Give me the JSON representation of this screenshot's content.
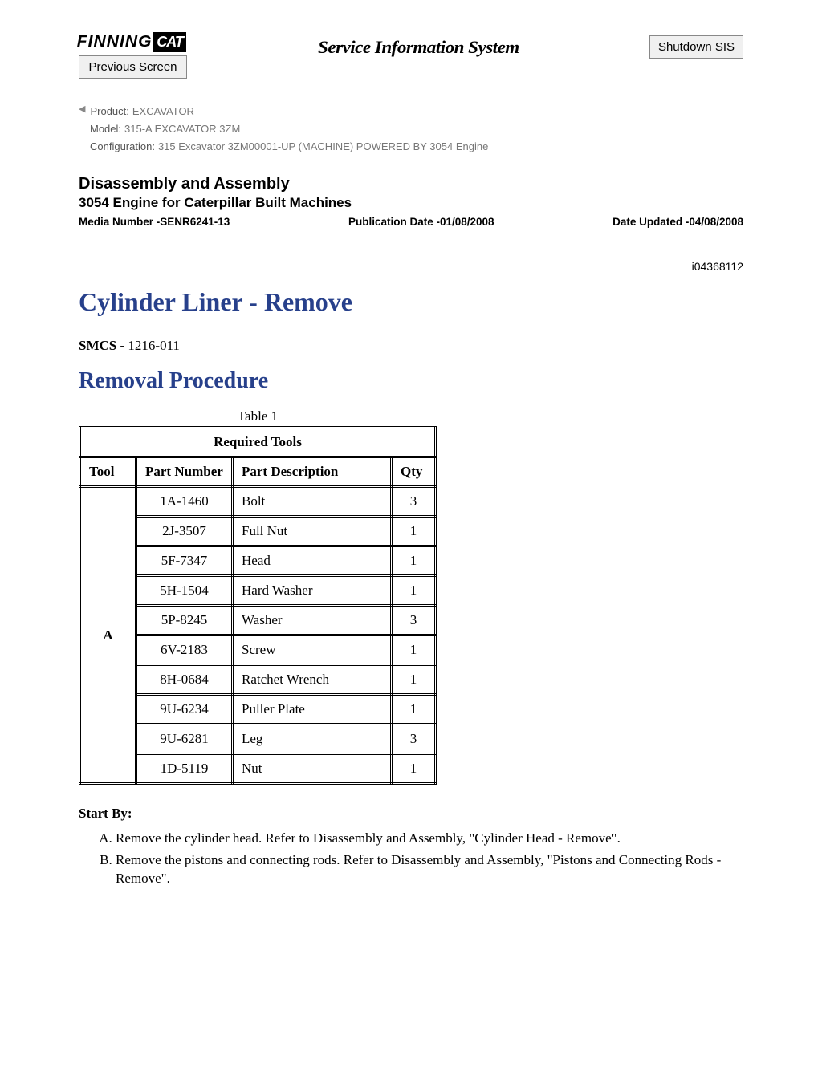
{
  "header": {
    "logo_text1": "FINNING",
    "logo_text2": "CAT",
    "system_title": "Service Information System",
    "prev_button": "Previous Screen",
    "shutdown_button": "Shutdown SIS"
  },
  "meta": {
    "product_label": "Product:",
    "product_value": "EXCAVATOR",
    "model_label": "Model:",
    "model_value": "315-A EXCAVATOR 3ZM",
    "config_label": "Configuration:",
    "config_value": "315 Excavator 3ZM00001-UP (MACHINE) POWERED BY 3054 Engine"
  },
  "doc": {
    "section": "Disassembly and Assembly",
    "subsection": "3054 Engine for Caterpillar Built Machines",
    "media": "Media Number -SENR6241-13",
    "pubdate": "Publication Date -01/08/2008",
    "updated": "Date Updated -04/08/2008",
    "docid": "i04368112",
    "h1": "Cylinder Liner - Remove",
    "smcs_label": "SMCS -",
    "smcs_value": "1216-011",
    "h2": "Removal Procedure"
  },
  "table": {
    "caption": "Table 1",
    "title": "Required Tools",
    "columns": [
      "Tool",
      "Part Number",
      "Part Description",
      "Qty"
    ],
    "tool_group": "A",
    "rows": [
      {
        "pn": "1A-1460",
        "desc": "Bolt",
        "qty": "3"
      },
      {
        "pn": "2J-3507",
        "desc": "Full Nut",
        "qty": "1"
      },
      {
        "pn": "5F-7347",
        "desc": "Head",
        "qty": "1"
      },
      {
        "pn": "5H-1504",
        "desc": "Hard Washer",
        "qty": "1"
      },
      {
        "pn": "5P-8245",
        "desc": "Washer",
        "qty": "3"
      },
      {
        "pn": "6V-2183",
        "desc": "Screw",
        "qty": "1"
      },
      {
        "pn": "8H-0684",
        "desc": "Ratchet Wrench",
        "qty": "1"
      },
      {
        "pn": "9U-6234",
        "desc": "Puller Plate",
        "qty": "1"
      },
      {
        "pn": "9U-6281",
        "desc": "Leg",
        "qty": "3"
      },
      {
        "pn": "1D-5119",
        "desc": "Nut",
        "qty": "1"
      }
    ]
  },
  "startby": {
    "heading": "Start By:",
    "items": [
      "Remove the cylinder head. Refer to Disassembly and Assembly, \"Cylinder Head - Remove\".",
      "Remove the pistons and connecting rods. Refer to Disassembly and Assembly, \"Pistons and Connecting Rods - Remove\"."
    ]
  }
}
